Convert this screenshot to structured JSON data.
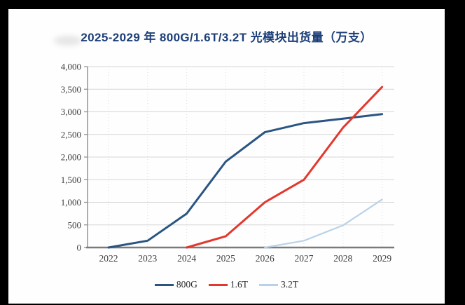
{
  "title": "2025-2029 年 800G/1.6T/3.2T 光模块出货量（万支）",
  "colors": {
    "frame": "#000000",
    "panel": "#fefefe",
    "title_text": "#1c3e78",
    "axis_line": "#7a7a7a",
    "y_axis_line": "#8c8c8c",
    "gridline": "#d5d5d5",
    "tick_text": "#3d3d3d"
  },
  "chart_data": {
    "type": "line",
    "title": "2025-2029 年 800G/1.6T/3.2T 光模块出货量（万支）",
    "categories": [
      2022,
      2023,
      2024,
      2025,
      2026,
      2027,
      2028,
      2029
    ],
    "x_tick_labels": [
      "2022",
      "2023",
      "2024",
      "2025",
      "2026",
      "2027",
      "2028",
      "2029"
    ],
    "series": [
      {
        "name": "800G",
        "color": "#2a5582",
        "stroke_width": 3,
        "values": [
          0,
          150,
          750,
          1900,
          2550,
          2750,
          2850,
          2950
        ]
      },
      {
        "name": "1.6T",
        "color": "#e2382d",
        "stroke_width": 3,
        "values": [
          null,
          null,
          0,
          250,
          1000,
          1500,
          2650,
          3550
        ]
      },
      {
        "name": "3.2T",
        "color": "#b9d2e9",
        "stroke_width": 2.2,
        "values": [
          null,
          null,
          null,
          null,
          0,
          150,
          490,
          1060
        ]
      }
    ],
    "ylim": [
      0,
      4000
    ],
    "y_tick_step": 500,
    "y_tick_labels": [
      "0",
      "500",
      "1,000",
      "1,500",
      "2,000",
      "2,500",
      "3,000",
      "3,500",
      "4,000"
    ],
    "xlabel": "",
    "ylabel": "",
    "grid": true,
    "legend_position": "bottom"
  }
}
